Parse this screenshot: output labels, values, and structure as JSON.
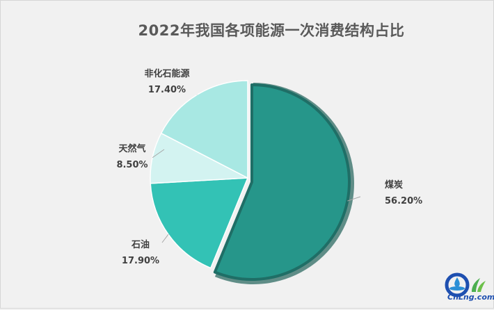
{
  "chart_data": {
    "type": "pie",
    "title": "2022年我国各项能源一次消费结构占比",
    "slices": [
      {
        "label": "煤炭",
        "value": 56.2,
        "value_label": "56.20%",
        "color": "#26968a"
      },
      {
        "label": "石油",
        "value": 17.9,
        "value_label": "17.90%",
        "color": "#33c2b5"
      },
      {
        "label": "天然气",
        "value": 8.5,
        "value_label": "8.50%",
        "color": "#d3f3f1"
      },
      {
        "label": "非化石能源",
        "value": 17.4,
        "value_label": "17.40%",
        "color": "#a8e8e3"
      }
    ],
    "exploded": "煤炭",
    "start_angle": "12 o'clock, clockwise"
  },
  "logo": {
    "text": "CnLng.com",
    "colors": {
      "ring": "#1e4fb0",
      "water": "#2a8fd6",
      "leaf": "#4caf50"
    }
  }
}
